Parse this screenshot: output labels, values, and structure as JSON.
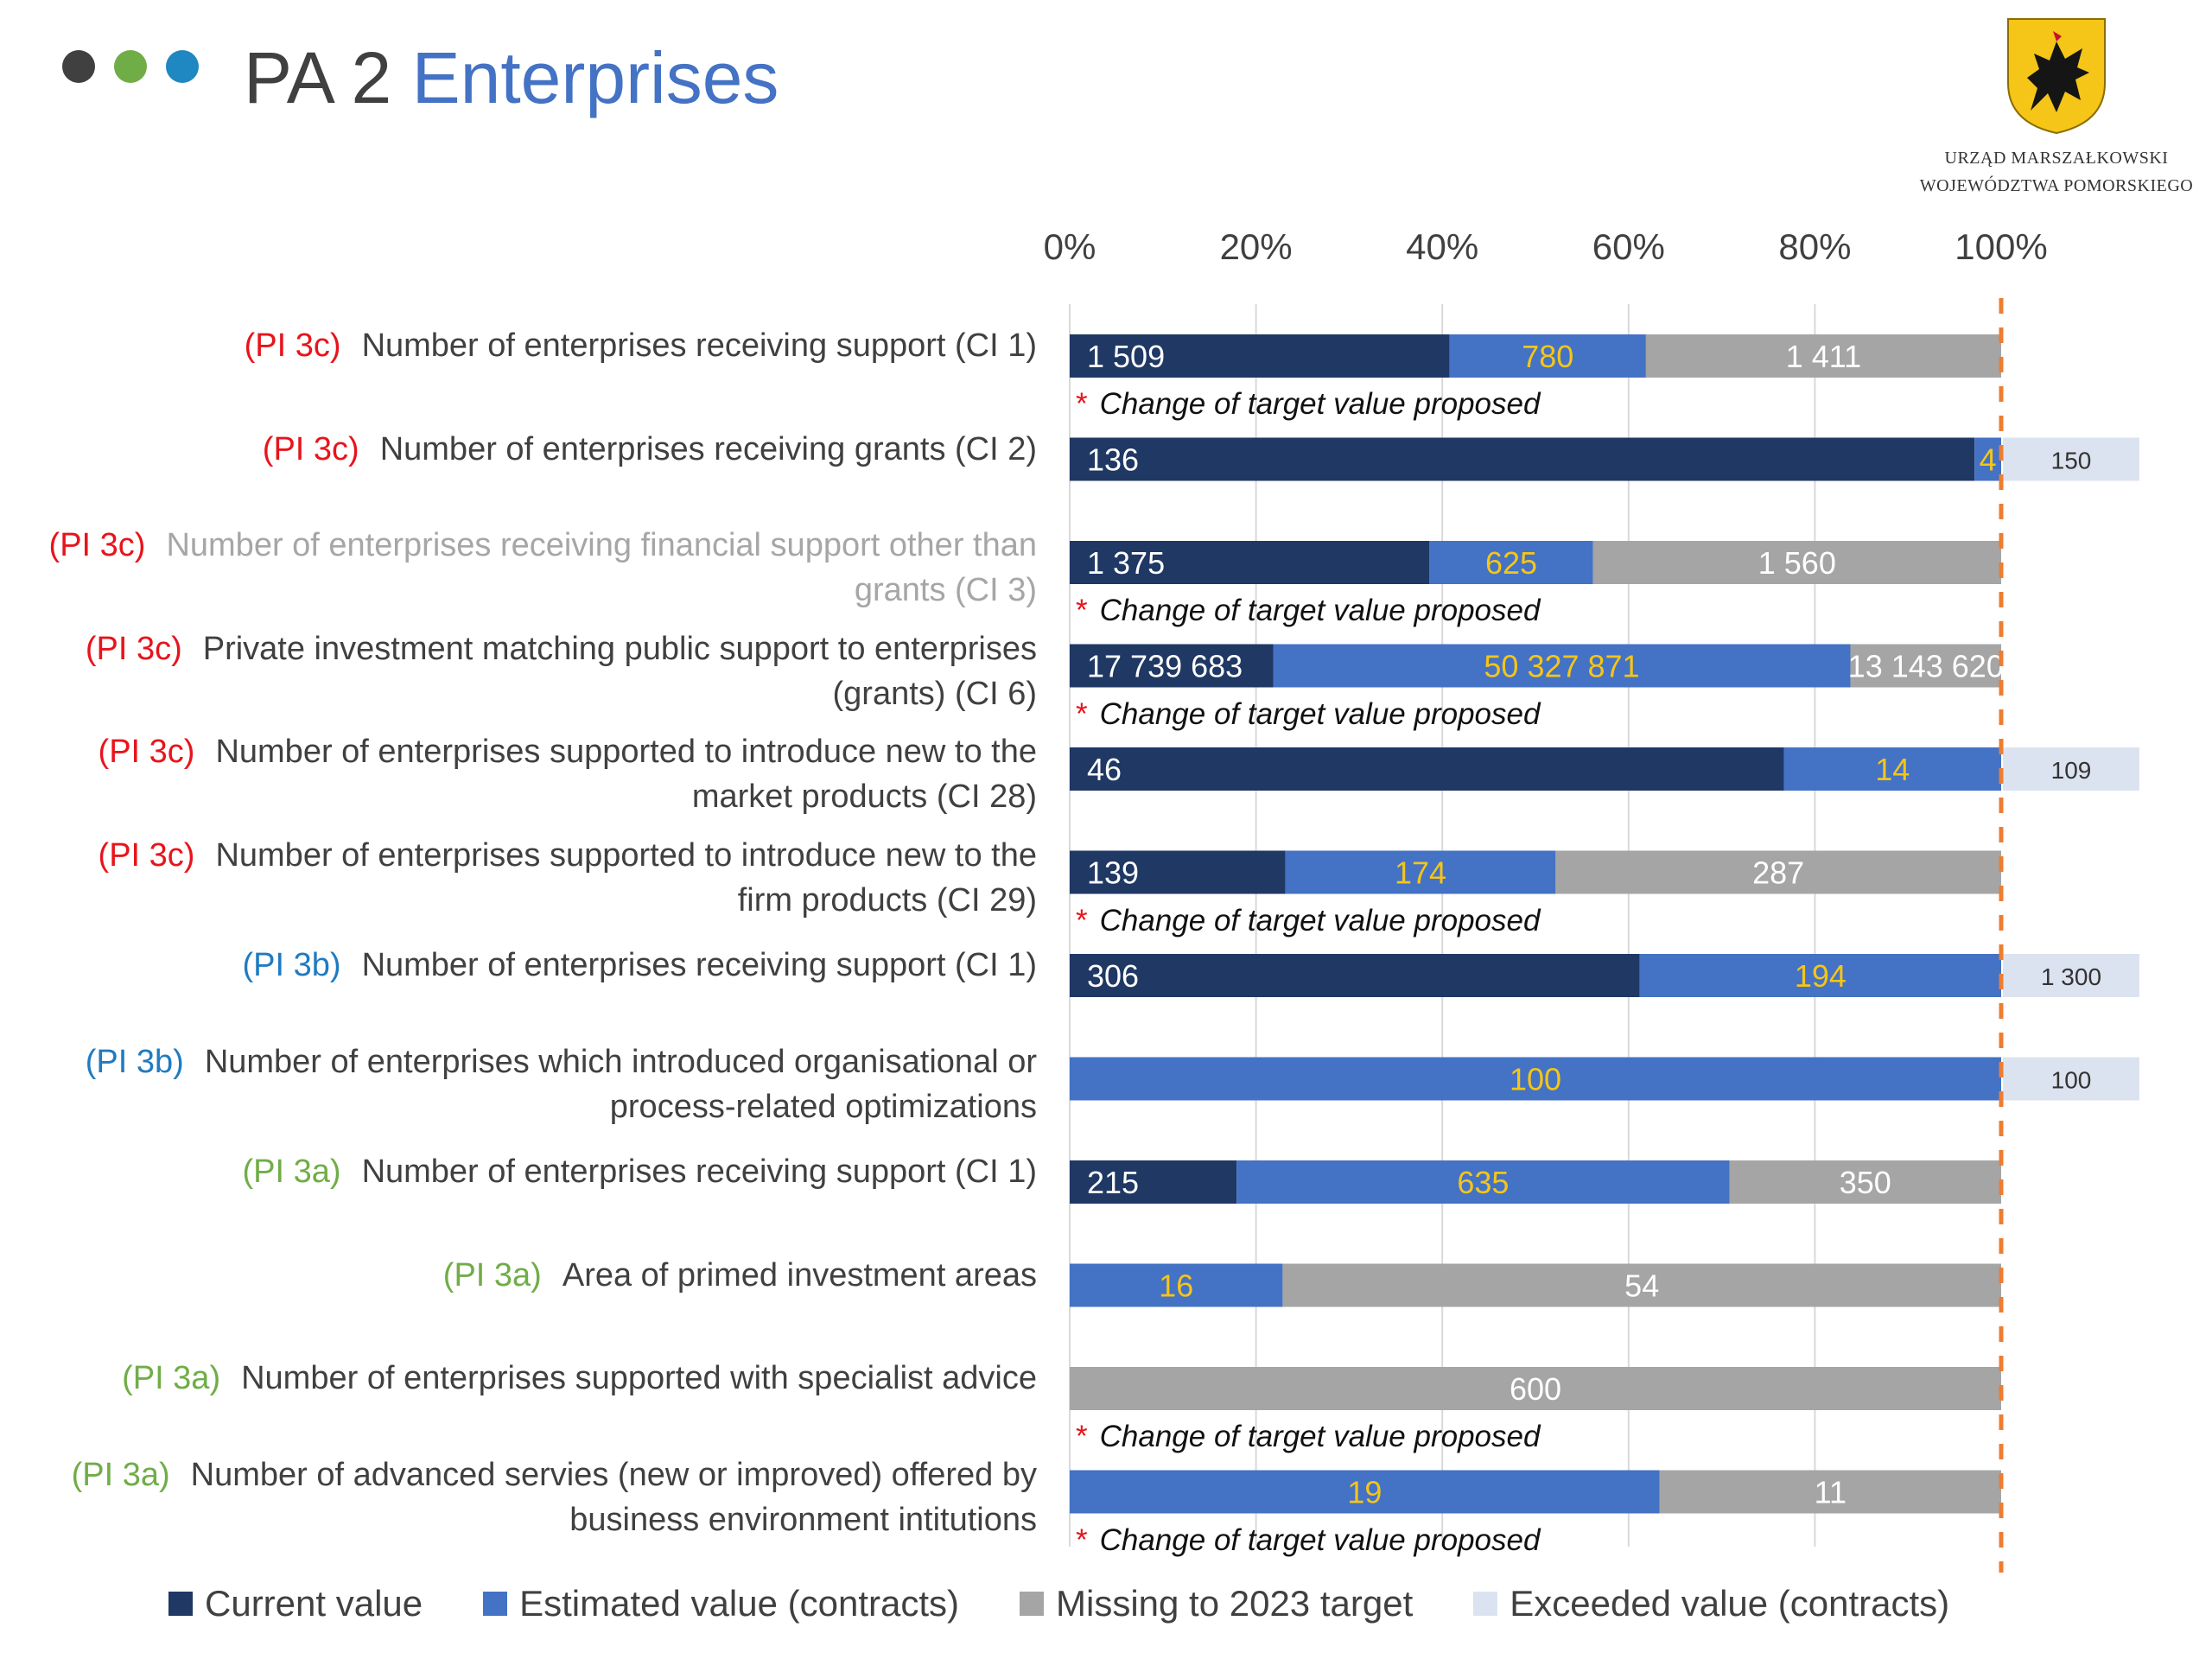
{
  "header": {
    "pa_label": "PA 2",
    "section_title": "Enterprises",
    "dot_colors": [
      "#404040",
      "#70AD47",
      "#1F87C1"
    ]
  },
  "logo": {
    "line1": "URZĄD MARSZAŁKOWSKI",
    "line2": "WOJEWÓDZTWA POMORSKIEGO"
  },
  "colors": {
    "current": "#1F3864",
    "estimated": "#4472C4",
    "missing": "#A5A5A5",
    "exceeded": "#DCE3F0",
    "target_line": "#ED7D31"
  },
  "chart_data": {
    "type": "bar",
    "orientation": "horizontal",
    "stacked": true,
    "xlim": [
      0,
      100
    ],
    "x_ticks": [
      "0%",
      "20%",
      "40%",
      "60%",
      "80%",
      "100%"
    ],
    "series": [
      {
        "name": "Current value"
      },
      {
        "name": "Estimated value (contracts)"
      },
      {
        "name": "Missing to 2023 target"
      },
      {
        "name": "Exceeded value (contracts)"
      }
    ],
    "rows": [
      {
        "tag": "(PI 3c)",
        "tag_class": "c3c",
        "label": [
          "Number of enterprises receiving support (CI 1)"
        ],
        "grey": false,
        "current": 1509,
        "current_label": "1 509",
        "estimated": 780,
        "estimated_label": "780",
        "missing": 1411,
        "missing_label": "1 411",
        "exceeded_label": "",
        "note": "Change of target value proposed"
      },
      {
        "tag": "(PI 3c)",
        "tag_class": "c3c",
        "label": [
          "Number of enterprises receiving grants (CI 2)"
        ],
        "grey": false,
        "current": 136,
        "current_label": "136",
        "estimated": 4,
        "estimated_label": "4",
        "missing": 0,
        "missing_label": "",
        "exceeded_label": "150",
        "note": ""
      },
      {
        "tag": "(PI 3c)",
        "tag_class": "c3c",
        "label": [
          "Number of enterprises receiving financial support other than",
          "grants (CI 3)"
        ],
        "grey": true,
        "current": 1375,
        "current_label": "1 375",
        "estimated": 625,
        "estimated_label": "625",
        "missing": 1560,
        "missing_label": "1 560",
        "exceeded_label": "",
        "note": "Change of target value proposed"
      },
      {
        "tag": "(PI 3c)",
        "tag_class": "c3c",
        "label": [
          "Private investment matching public support to enterprises",
          "(grants)  (CI 6)"
        ],
        "grey": false,
        "current": 17739683,
        "current_label": "17 739 683",
        "estimated": 50327871,
        "estimated_label": "50 327 871",
        "missing": 13143620,
        "missing_label": "13 143 620",
        "exceeded_label": "",
        "note": "Change of target value proposed"
      },
      {
        "tag": "(PI 3c)",
        "tag_class": "c3c",
        "label": [
          "Number of enterprises supported to introduce new to the",
          "market products  (CI 28)"
        ],
        "grey": false,
        "current": 46,
        "current_label": "46",
        "estimated": 14,
        "estimated_label": "14",
        "missing": 0,
        "missing_label": "",
        "exceeded_label": "109",
        "note": ""
      },
      {
        "tag": "(PI 3c)",
        "tag_class": "c3c",
        "label": [
          "Number of enterprises supported to introduce new to the",
          "firm products  (CI 29)"
        ],
        "grey": false,
        "current": 139,
        "current_label": "139",
        "estimated": 174,
        "estimated_label": "174",
        "missing": 287,
        "missing_label": "287",
        "exceeded_label": "",
        "note": "Change of target value proposed"
      },
      {
        "tag": "(PI 3b)",
        "tag_class": "c3b",
        "label": [
          "Number of enterprises receiving support (CI 1)"
        ],
        "grey": false,
        "current": 306,
        "current_label": "306",
        "estimated": 194,
        "estimated_label": "194",
        "missing": 0,
        "missing_label": "",
        "exceeded_label": "1 300",
        "note": ""
      },
      {
        "tag": "(PI 3b)",
        "tag_class": "c3b",
        "label": [
          "Number of enterprises which introduced organisational or",
          "process-related optimizations"
        ],
        "grey": false,
        "current": 0,
        "current_label": "",
        "estimated": 100,
        "estimated_label": "100",
        "missing": 0,
        "missing_label": "",
        "exceeded_label": "100",
        "note": ""
      },
      {
        "tag": "(PI 3a)",
        "tag_class": "c3a",
        "label": [
          "Number of enterprises receiving support (CI 1)"
        ],
        "grey": false,
        "current": 215,
        "current_label": "215",
        "estimated": 635,
        "estimated_label": "635",
        "missing": 350,
        "missing_label": "350",
        "exceeded_label": "",
        "note": ""
      },
      {
        "tag": "(PI 3a)",
        "tag_class": "c3a",
        "label": [
          "Area of primed investment areas"
        ],
        "grey": false,
        "current": 0,
        "current_label": "",
        "estimated": 16,
        "estimated_label": "16",
        "missing": 54,
        "missing_label": "54",
        "exceeded_label": "",
        "note": ""
      },
      {
        "tag": "(PI 3a)",
        "tag_class": "c3a",
        "label": [
          "Number of enterprises supported with specialist advice"
        ],
        "grey": false,
        "current": 0,
        "current_label": "",
        "estimated": 0,
        "estimated_label": "",
        "missing": 600,
        "missing_label": "600",
        "exceeded_label": "",
        "note": "Change of target value proposed"
      },
      {
        "tag": "(PI 3a)",
        "tag_class": "c3a",
        "label": [
          "Number of advanced servies (new or improved) offered by",
          "business environment intitutions"
        ],
        "grey": false,
        "current": 0,
        "current_label": "",
        "estimated": 19,
        "estimated_label": "19",
        "missing": 11,
        "missing_label": "11",
        "exceeded_label": "",
        "note": "Change of target value proposed"
      }
    ],
    "legend_position": "bottom"
  }
}
